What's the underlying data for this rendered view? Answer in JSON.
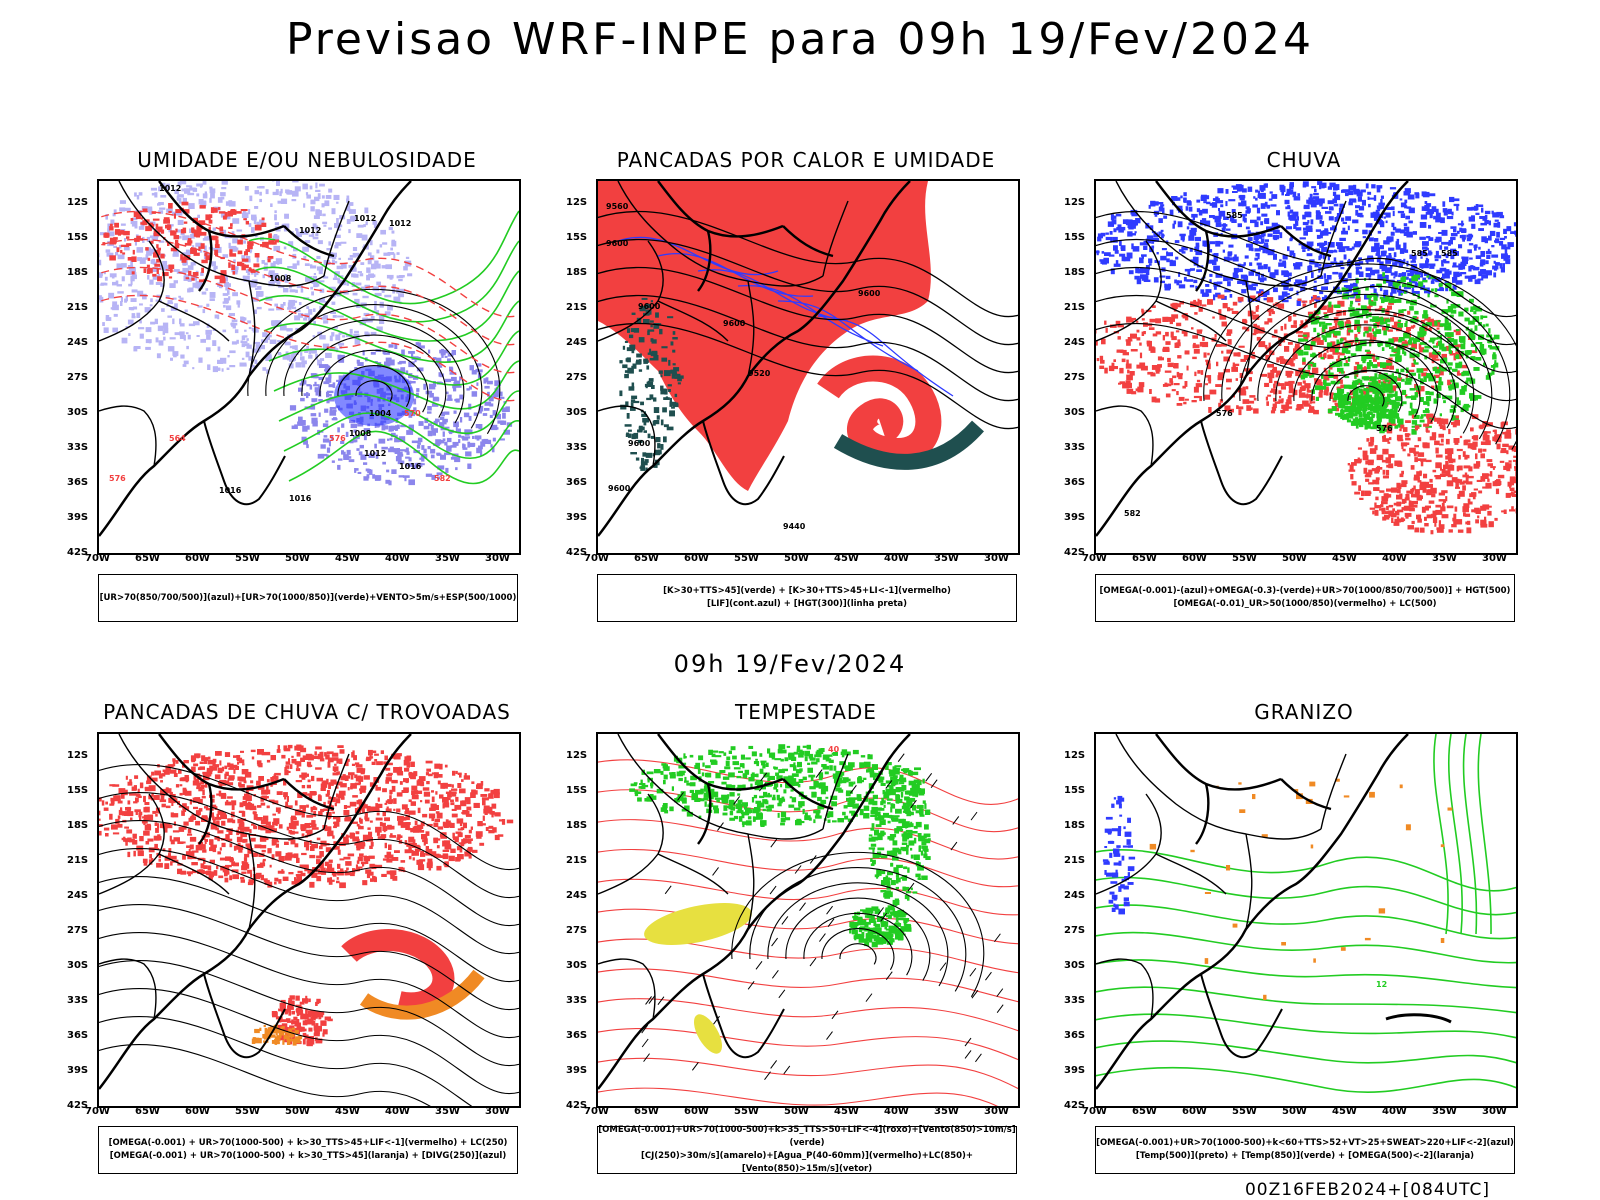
{
  "page": {
    "title": "Previsao WRF-INPE  para 09h 19/Fev/2024",
    "mid_date": "09h 19/Fev/2024",
    "run_info": "00Z16FEB2024+[084UTC]"
  },
  "axes": {
    "latitudes": [
      "12S",
      "15S",
      "18S",
      "21S",
      "24S",
      "27S",
      "30S",
      "33S",
      "36S",
      "39S",
      "42S"
    ],
    "longitudes": [
      "70W",
      "65W",
      "60W",
      "55W",
      "50W",
      "45W",
      "40W",
      "35W",
      "30W"
    ]
  },
  "colors": {
    "blue": "#2f3bff",
    "light_blue": "#b7b4f5",
    "mid_blue": "#8c86ec",
    "green": "#22cc22",
    "red": "#f24040",
    "dark_teal": "#1f4f4f",
    "orange": "#f08a24",
    "yellow": "#e7e040",
    "purple": "#a020f0"
  },
  "panels": [
    {
      "title": "UMIDADE E/OU NEBULOSIDADE",
      "legend": [
        "[UR>70(850/700/500)](azul)+[UR>70(1000/850)](verde)+VENTO>5m/s+ESP(500/1000)"
      ],
      "labels": [
        "1012",
        "1012",
        "1012",
        "1012",
        "1008",
        "1004",
        "1008",
        "1012",
        "1016",
        "1016",
        "1016",
        "576",
        "570",
        "564",
        "576",
        "582"
      ]
    },
    {
      "title": "PANCADAS POR CALOR E UMIDADE",
      "legend": [
        "[K>30+TTS>45](verde) + [K>30+TTS>45+LI<-1](vermelho)",
        "[LIF](cont.azul) + [HGT(300)](linha preta)"
      ],
      "labels": [
        "9560",
        "9600",
        "9600",
        "9600",
        "9600",
        "9520",
        "9600",
        "9600",
        "9440"
      ]
    },
    {
      "title": "CHUVA",
      "legend": [
        "[OMEGA(-0.001)-(azul)+OMEGA(-0.3)-(verde)+UR>70(1000/850/700/500)] + HGT(500)",
        "[OMEGA(-0.01)_UR>50(1000/850)(vermelho) + LC(500)"
      ],
      "labels": [
        "585",
        "585",
        "585",
        "576",
        "576",
        "582"
      ]
    },
    {
      "title": "PANCADAS DE CHUVA C/ TROVOADAS",
      "legend": [
        "[OMEGA(-0.001) + UR>70(1000-500) + k>30_TTS>45+LIF<-1](vermelho) + LC(250)",
        "[OMEGA(-0.001) + UR>70(1000-500) + k>30_TTS>45](laranja) + [DIVG(250)](azul)"
      ],
      "labels": []
    },
    {
      "title": "TEMPESTADE",
      "legend": [
        "[OMEGA(-0.001)+UR>70(1000-500)+k>35_TTS>50+LIF<-4](roxo)+[Vento(850)>10m/s](verde)",
        "[CJ(250)>30m/s](amarelo)+[Agua_P(40-60mm)](vermelho)+LC(850)+[Vento(850)>15m/s](vetor)"
      ],
      "labels": [
        "40"
      ]
    },
    {
      "title": "GRANIZO",
      "legend": [
        "[OMEGA(-0.001)+UR>70(1000-500)+k<60+TTS>52+VT>25+SWEAT>220+LIF<-2](azul)",
        "[Temp(500)](preto) + [Temp(850)](verde) + [OMEGA(500)<-2](laranja)"
      ],
      "labels": [
        "12"
      ]
    }
  ]
}
